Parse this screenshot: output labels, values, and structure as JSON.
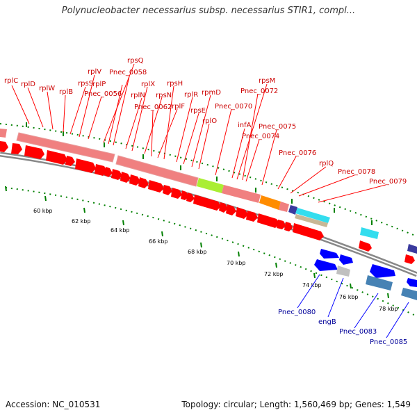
{
  "title": "Polynucleobacter necessarius subsp. necessarius STIR1, compl...",
  "footer": {
    "accession": "Accession: NC_010531",
    "summary": "Topology: circular; Length: 1,560,469 bp; Genes: 1,549"
  },
  "colors": {
    "forward_gene": "#ff0000",
    "forward_label": "#cc0000",
    "reverse_gene": "#0000ff",
    "reverse_label": "#000099",
    "ribosomal_block": "#f08080",
    "highlight_green": "#aaee33",
    "highlight_orange": "#ff8c00",
    "highlight_cyan": "#33ddee",
    "highlight_tan": "#c8b896",
    "highlight_navy": "#3a3a9e",
    "highlight_steel": "#4682b4",
    "tick_green": "#008000",
    "backbone": "#888888"
  },
  "scale_ticks": [
    "60 kbp",
    "62 kbp",
    "64 kbp",
    "66 kbp",
    "68 kbp",
    "70 kbp",
    "72 kbp",
    "74 kbp",
    "76 kbp",
    "78 kbp"
  ],
  "forward_labels": [
    "rplC",
    "rplD",
    "rplW",
    "rplB",
    "rpsS",
    "rplV",
    "rplP",
    "Pnec_0056",
    "rpsQ",
    "Pnec_0058",
    "rplN",
    "rplX",
    "rpsN",
    "Pnec_0062",
    "rplF",
    "rpsH",
    "rplR",
    "rpsE",
    "rpmD",
    "rplO",
    "Pnec_0070",
    "infA",
    "rpsM",
    "Pnec_0072",
    "Pnec_0074",
    "Pnec_0075",
    "Pnec_0076",
    "rplQ",
    "Pnec_0078",
    "Pnec_0079"
  ],
  "reverse_labels": [
    "Pnec_0080",
    "engB",
    "Pnec_0083",
    "Pnec_0085"
  ]
}
